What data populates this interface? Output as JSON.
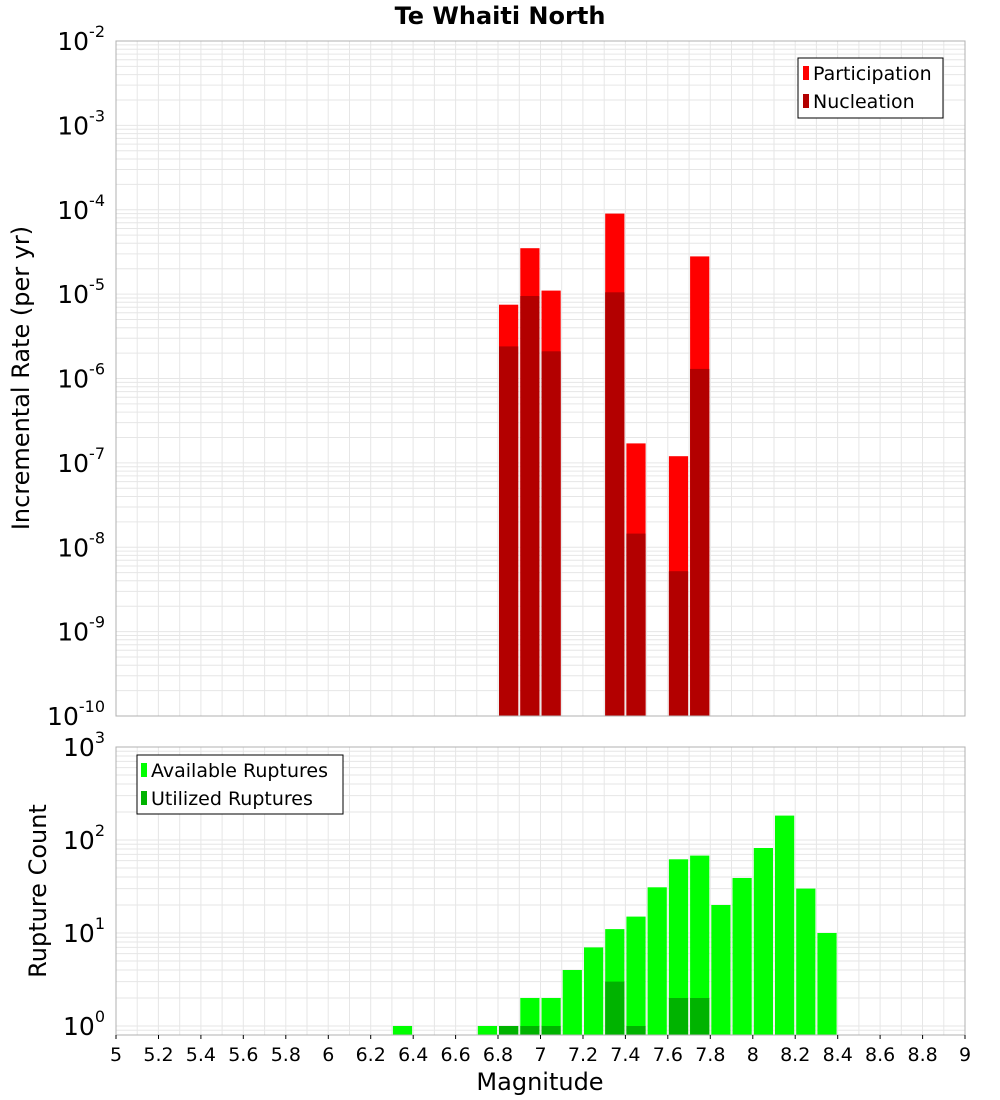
{
  "title": "Te Whaiti North",
  "colors": {
    "participation": "#ff0000",
    "nucleation": "#b30000",
    "available": "#00ff00",
    "utilized": "#00b300",
    "grid": "#e6e6e6",
    "border": "#b0b0b0"
  },
  "chart_data": [
    {
      "type": "bar",
      "ylabel": "Incremental Rate (per yr)",
      "yscale": "log",
      "ylim": [
        1e-10,
        0.01
      ],
      "xlim": [
        5,
        9
      ],
      "legend": "top-right",
      "grid": true,
      "y_tick_exponents": [
        "-10",
        "-9",
        "-8",
        "-7",
        "-6",
        "-5",
        "-4",
        "-3",
        "-2"
      ],
      "y_tick_base": "10",
      "series": [
        {
          "name": "Participation",
          "color_key": "participation",
          "x": [
            6.85,
            6.95,
            7.05,
            7.35,
            7.45,
            7.65,
            7.75
          ],
          "values": [
            7.5e-06,
            3.5e-05,
            1.1e-05,
            9e-05,
            1.7e-07,
            1.2e-07,
            2.8e-05
          ]
        },
        {
          "name": "Nucleation",
          "color_key": "nucleation",
          "x": [
            6.85,
            6.95,
            7.05,
            7.35,
            7.45,
            7.65,
            7.75
          ],
          "values": [
            2.4e-06,
            9.5e-06,
            2.1e-06,
            1.05e-05,
            1.45e-08,
            5.2e-09,
            1.3e-06
          ]
        }
      ]
    },
    {
      "type": "bar",
      "xlabel": "Magnitude",
      "ylabel": "Rupture Count",
      "yscale": "log",
      "ylim": [
        0.8,
        1000
      ],
      "xlim": [
        5,
        9
      ],
      "legend": "top-left",
      "grid": true,
      "y_tick_exponents": [
        "0",
        "1",
        "2",
        "3"
      ],
      "y_tick_base": "10",
      "x_ticks": [
        "5",
        "5.2",
        "5.4",
        "5.6",
        "5.8",
        "6",
        "6.2",
        "6.4",
        "6.6",
        "6.8",
        "7",
        "7.2",
        "7.4",
        "7.6",
        "7.8",
        "8",
        "8.2",
        "8.4",
        "8.6",
        "8.8",
        "9"
      ],
      "series": [
        {
          "name": "Available Ruptures",
          "color_key": "available",
          "x": [
            6.35,
            6.75,
            6.85,
            6.95,
            7.05,
            7.15,
            7.25,
            7.35,
            7.45,
            7.55,
            7.65,
            7.75,
            7.85,
            7.95,
            8.05,
            8.15,
            8.25,
            8.35
          ],
          "values": [
            1,
            1,
            1,
            2,
            2,
            4,
            7,
            11,
            15,
            31,
            62,
            68,
            20,
            39,
            82,
            183,
            30,
            10
          ]
        },
        {
          "name": "Utilized Ruptures",
          "color_key": "utilized",
          "x": [
            6.85,
            6.95,
            7.05,
            7.35,
            7.45,
            7.65,
            7.75
          ],
          "values": [
            1,
            1,
            1,
            3,
            1,
            2,
            2
          ]
        }
      ]
    }
  ]
}
